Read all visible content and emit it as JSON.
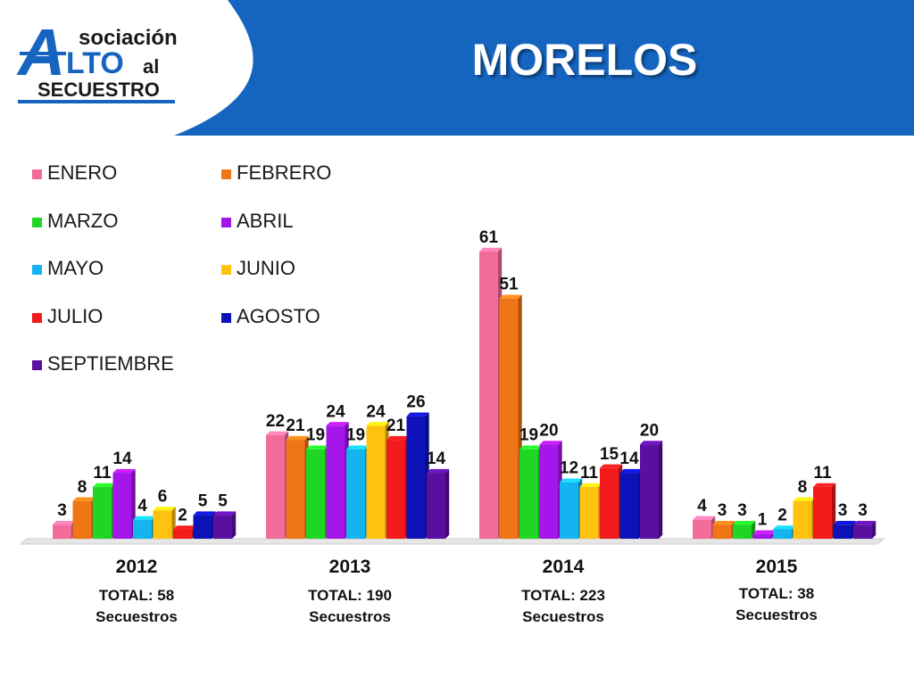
{
  "header": {
    "title": "MORELOS",
    "band_color": "#1565c0",
    "logo": {
      "line1": "sociación",
      "big_a": "A",
      "alto": "LTO",
      "al": "al",
      "secuestro": "SECUESTRO"
    }
  },
  "chart_data": {
    "type": "bar",
    "categories": [
      "2012",
      "2013",
      "2014",
      "2015"
    ],
    "series": [
      {
        "name": "ENERO",
        "color": "#f26b99",
        "values": [
          3,
          22,
          61,
          4
        ]
      },
      {
        "name": "FEBRERO",
        "color": "#f07516",
        "values": [
          8,
          21,
          51,
          3
        ]
      },
      {
        "name": "MARZO",
        "color": "#1fd624",
        "values": [
          11,
          19,
          19,
          3
        ]
      },
      {
        "name": "ABRIL",
        "color": "#a516ea",
        "values": [
          14,
          24,
          20,
          1
        ]
      },
      {
        "name": "MAYO",
        "color": "#14b4f0",
        "values": [
          4,
          19,
          12,
          2
        ]
      },
      {
        "name": "JUNIO",
        "color": "#ffc20e",
        "values": [
          6,
          24,
          11,
          8
        ]
      },
      {
        "name": "JULIO",
        "color": "#f21a1a",
        "values": [
          2,
          21,
          15,
          11
        ]
      },
      {
        "name": "AGOSTO",
        "color": "#0d12b8",
        "values": [
          5,
          26,
          14,
          3
        ]
      },
      {
        "name": "SEPTIEMBRE",
        "color": "#5a0fa0",
        "values": [
          5,
          14,
          20,
          3
        ]
      }
    ],
    "totals": [
      "TOTAL: 58",
      "TOTAL: 190",
      "TOTAL: 223",
      "TOTAL: 38"
    ],
    "total_unit": "Secuestros",
    "legend_position": "top-left",
    "grid": false
  }
}
